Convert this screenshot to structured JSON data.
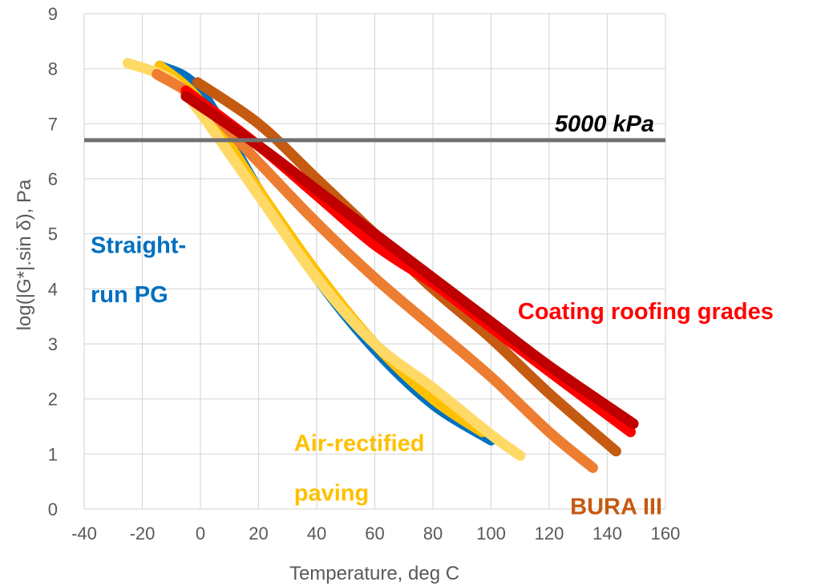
{
  "chart_data": {
    "type": "line",
    "title": "",
    "xlabel": "Temperature, deg C",
    "ylabel": "log(|G*|.sin δ), Pa",
    "xlim": [
      -40,
      160
    ],
    "ylim": [
      0,
      9
    ],
    "xticks": [
      -40,
      -20,
      0,
      20,
      40,
      60,
      80,
      100,
      120,
      140,
      160
    ],
    "yticks": [
      0,
      1,
      2,
      3,
      4,
      5,
      6,
      7,
      8,
      9
    ],
    "grid": true,
    "legend": "none",
    "reference_line": {
      "y": 6.7,
      "label": "5000 kPa",
      "color": "#707070"
    },
    "annotations": [
      {
        "text": "Straight-",
        "x": -40,
        "y": 4.8,
        "color": "#0070c0"
      },
      {
        "text": "run PG",
        "x": -40,
        "y": 3.9,
        "color": "#0070c0"
      },
      {
        "text": "Coating roofing grades",
        "x": 107,
        "y": 3.6,
        "color": "#ff0000"
      },
      {
        "text": "Air-rectified",
        "x": 30,
        "y": 1.2,
        "color": "#ffc000"
      },
      {
        "text": "paving",
        "x": 30,
        "y": 0.3,
        "color": "#ffc000"
      },
      {
        "text": "BURA III",
        "x": 125,
        "y": 0.05,
        "color": "#c55a11"
      }
    ],
    "series": [
      {
        "color": "#0070c0",
        "x": [
          -14,
          0,
          20,
          40,
          60,
          80,
          100
        ],
        "y": [
          8.05,
          7.6,
          5.8,
          4.2,
          2.9,
          1.9,
          1.25
        ]
      },
      {
        "color": "#ffc000",
        "x": [
          -14,
          0,
          20,
          40,
          60,
          80,
          97
        ],
        "y": [
          8.05,
          7.4,
          5.8,
          4.3,
          3.0,
          2.0,
          1.4
        ]
      },
      {
        "color": "#ffd966",
        "x": [
          -25,
          -10,
          0,
          20,
          40,
          60,
          80,
          100,
          110
        ],
        "y": [
          8.1,
          7.8,
          7.2,
          5.7,
          4.2,
          3.0,
          2.2,
          1.35,
          0.97
        ]
      },
      {
        "color": "#ed7d31",
        "x": [
          -15,
          0,
          20,
          40,
          60,
          80,
          100,
          120,
          135
        ],
        "y": [
          7.9,
          7.4,
          6.3,
          5.2,
          4.2,
          3.3,
          2.4,
          1.4,
          0.75
        ]
      },
      {
        "color": "#c55a11",
        "x": [
          -1,
          20,
          40,
          60,
          80,
          100,
          120,
          143
        ],
        "y": [
          7.75,
          7.0,
          6.0,
          5.0,
          4.0,
          3.1,
          2.1,
          1.05
        ]
      },
      {
        "color": "#ff0000",
        "x": [
          -5,
          20,
          40,
          60,
          80,
          100,
          120,
          148
        ],
        "y": [
          7.6,
          6.6,
          5.7,
          4.8,
          4.1,
          3.3,
          2.5,
          1.4
        ]
      },
      {
        "color": "#c00000",
        "x": [
          -5,
          20,
          40,
          60,
          80,
          100,
          120,
          149
        ],
        "y": [
          7.5,
          6.6,
          5.8,
          5.0,
          4.2,
          3.4,
          2.6,
          1.55
        ]
      }
    ]
  }
}
